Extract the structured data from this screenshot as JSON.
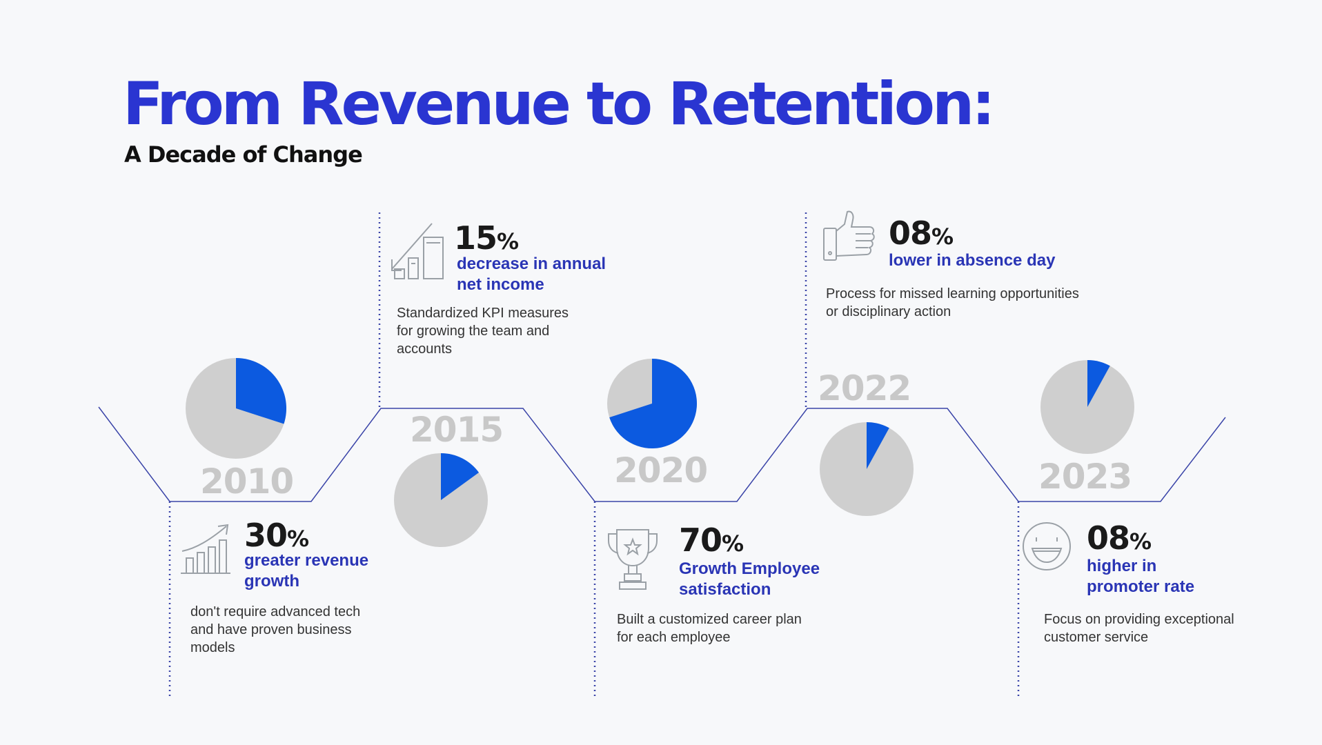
{
  "header": {
    "title": "From Revenue to Retention:",
    "subtitle": "A Decade of Change"
  },
  "colors": {
    "accent": "#2a35d1",
    "pie_fill": "#0c5ae0",
    "pie_bg": "#cfcfcf",
    "line": "#3a44a8",
    "year": "#c8c8c8"
  },
  "milestones": [
    {
      "year": "2010",
      "pie_fraction": 0.3,
      "stat_value": "30",
      "stat_unit": "%",
      "label": "greater revenue growth",
      "description": "don't require advanced tech and have proven business models",
      "icon": "growth-chart-icon"
    },
    {
      "year": "2015",
      "pie_fraction": 0.15,
      "stat_value": "15",
      "stat_unit": "%",
      "label": "decrease in annual net income",
      "description": "Standardized KPI measures for growing the team and accounts",
      "icon": "decline-chart-icon"
    },
    {
      "year": "2020",
      "pie_fraction": 0.7,
      "stat_value": "70",
      "stat_unit": "%",
      "label": "Growth Employee satisfaction",
      "description": "Built a customized career plan for each employee",
      "icon": "trophy-icon"
    },
    {
      "year": "2022",
      "pie_fraction": 0.08,
      "stat_value": "08",
      "stat_unit": "%",
      "label": "lower in absence day",
      "description": "Process for missed learning opportunities or disciplinary action",
      "icon": "thumbs-up-icon"
    },
    {
      "year": "2023",
      "pie_fraction": 0.08,
      "stat_value": "08",
      "stat_unit": "%",
      "label": "higher in promoter rate",
      "description": "Focus on providing exceptional customer service",
      "icon": "smiley-icon"
    }
  ]
}
